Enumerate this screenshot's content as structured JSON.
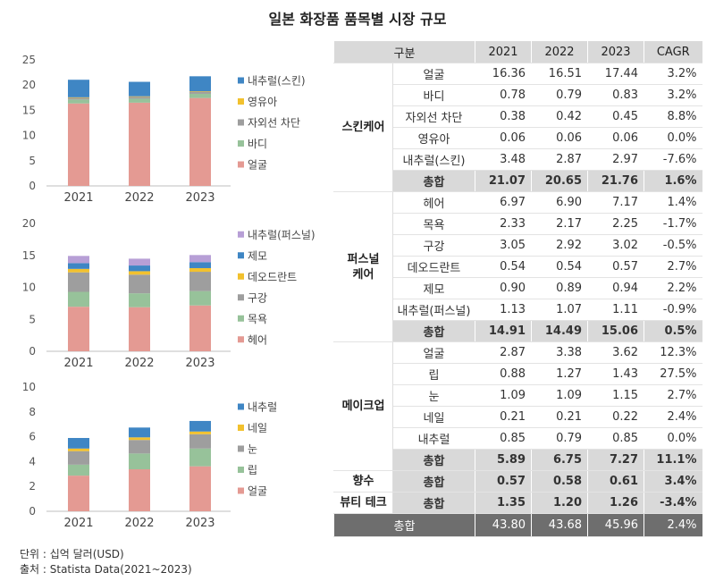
{
  "page_title": "일본 화장품 품목별 시장 규모",
  "chart_data": [
    {
      "type": "bar",
      "stacked": true,
      "categories": [
        "2021",
        "2022",
        "2023"
      ],
      "y_ticks": [
        "25",
        "20",
        "15",
        "10",
        "5",
        "0"
      ],
      "ylim": [
        0,
        25
      ],
      "legend_position": "right",
      "series": [
        {
          "name": "얼굴",
          "values": [
            16.36,
            16.51,
            17.44
          ],
          "color": "#e49a93"
        },
        {
          "name": "바디",
          "values": [
            0.78,
            0.79,
            0.83
          ],
          "color": "#97c29a"
        },
        {
          "name": "자외선 차단",
          "values": [
            0.38,
            0.42,
            0.45
          ],
          "color": "#9e9e9e"
        },
        {
          "name": "영유아",
          "values": [
            0.06,
            0.06,
            0.06
          ],
          "color": "#f2c12e"
        },
        {
          "name": "내추럴(스킨)",
          "values": [
            3.48,
            2.87,
            2.97
          ],
          "color": "#3f86c4"
        }
      ]
    },
    {
      "type": "bar",
      "stacked": true,
      "categories": [
        "2021",
        "2022",
        "2023"
      ],
      "y_ticks": [
        "20",
        "15",
        "10",
        "5",
        "0"
      ],
      "ylim": [
        0,
        20
      ],
      "legend_position": "right",
      "series": [
        {
          "name": "헤어",
          "values": [
            6.97,
            6.9,
            7.17
          ],
          "color": "#e49a93"
        },
        {
          "name": "목욕",
          "values": [
            2.33,
            2.17,
            2.25
          ],
          "color": "#97c29a"
        },
        {
          "name": "구강",
          "values": [
            3.05,
            2.92,
            3.02
          ],
          "color": "#9e9e9e"
        },
        {
          "name": "데오드란트",
          "values": [
            0.54,
            0.54,
            0.57
          ],
          "color": "#f2c12e"
        },
        {
          "name": "제모",
          "values": [
            0.9,
            0.89,
            0.94
          ],
          "color": "#3f86c4"
        },
        {
          "name": "내추럴(퍼스널)",
          "values": [
            1.13,
            1.07,
            1.11
          ],
          "color": "#b79fd6"
        }
      ]
    },
    {
      "type": "bar",
      "stacked": true,
      "categories": [
        "2021",
        "2022",
        "2023"
      ],
      "y_ticks": [
        "10",
        "8",
        "6",
        "4",
        "2",
        "0"
      ],
      "ylim": [
        0,
        10
      ],
      "legend_position": "right",
      "series": [
        {
          "name": "얼굴",
          "values": [
            2.87,
            3.38,
            3.62
          ],
          "color": "#e49a93"
        },
        {
          "name": "립",
          "values": [
            0.88,
            1.27,
            1.43
          ],
          "color": "#97c29a"
        },
        {
          "name": "눈",
          "values": [
            1.09,
            1.09,
            1.15
          ],
          "color": "#9e9e9e"
        },
        {
          "name": "네일",
          "values": [
            0.21,
            0.21,
            0.22
          ],
          "color": "#f2c12e"
        },
        {
          "name": "내추럴",
          "values": [
            0.85,
            0.79,
            0.85
          ],
          "color": "#3f86c4"
        }
      ]
    }
  ],
  "table": {
    "header": [
      "구분",
      "2021",
      "2022",
      "2023",
      "CAGR"
    ],
    "groups": [
      {
        "name": "스킨케어",
        "rows": [
          {
            "label": "얼굴",
            "values": [
              "16.36",
              "16.51",
              "17.44",
              "3.2%"
            ]
          },
          {
            "label": "바디",
            "values": [
              "0.78",
              "0.79",
              "0.83",
              "3.2%"
            ]
          },
          {
            "label": "자외선 차단",
            "values": [
              "0.38",
              "0.42",
              "0.45",
              "8.8%"
            ]
          },
          {
            "label": "영유아",
            "values": [
              "0.06",
              "0.06",
              "0.06",
              "0.0%"
            ]
          },
          {
            "label": "내추럴(스킨)",
            "values": [
              "3.48",
              "2.87",
              "2.97",
              "-7.6%"
            ]
          }
        ],
        "total": {
          "label": "총합",
          "values": [
            "21.07",
            "20.65",
            "21.76",
            "1.6%"
          ]
        }
      },
      {
        "name": "퍼스널 케어",
        "rows": [
          {
            "label": "헤어",
            "values": [
              "6.97",
              "6.90",
              "7.17",
              "1.4%"
            ]
          },
          {
            "label": "목욕",
            "values": [
              "2.33",
              "2.17",
              "2.25",
              "-1.7%"
            ]
          },
          {
            "label": "구강",
            "values": [
              "3.05",
              "2.92",
              "3.02",
              "-0.5%"
            ]
          },
          {
            "label": "데오드란트",
            "values": [
              "0.54",
              "0.54",
              "0.57",
              "2.7%"
            ]
          },
          {
            "label": "제모",
            "values": [
              "0.90",
              "0.89",
              "0.94",
              "2.2%"
            ]
          },
          {
            "label": "내추럴(퍼스널)",
            "values": [
              "1.13",
              "1.07",
              "1.11",
              "-0.9%"
            ]
          }
        ],
        "total": {
          "label": "총합",
          "values": [
            "14.91",
            "14.49",
            "15.06",
            "0.5%"
          ]
        }
      },
      {
        "name": "메이크업",
        "rows": [
          {
            "label": "얼굴",
            "values": [
              "2.87",
              "3.38",
              "3.62",
              "12.3%"
            ]
          },
          {
            "label": "립",
            "values": [
              "0.88",
              "1.27",
              "1.43",
              "27.5%"
            ]
          },
          {
            "label": "눈",
            "values": [
              "1.09",
              "1.09",
              "1.15",
              "2.7%"
            ]
          },
          {
            "label": "네일",
            "values": [
              "0.21",
              "0.21",
              "0.22",
              "2.4%"
            ]
          },
          {
            "label": "내추럴",
            "values": [
              "0.85",
              "0.79",
              "0.85",
              "0.0%"
            ]
          }
        ],
        "total": {
          "label": "총합",
          "values": [
            "5.89",
            "6.75",
            "7.27",
            "11.1%"
          ]
        }
      },
      {
        "name": "향수",
        "rows": [],
        "total": {
          "label": "총합",
          "values": [
            "0.57",
            "0.58",
            "0.61",
            "3.4%"
          ]
        }
      },
      {
        "name": "뷰티 테크",
        "rows": [],
        "total": {
          "label": "총합",
          "values": [
            "1.35",
            "1.20",
            "1.26",
            "-3.4%"
          ]
        }
      }
    ],
    "grand_total": {
      "label": "총합",
      "values": [
        "43.80",
        "43.68",
        "45.96",
        "2.4%"
      ]
    }
  },
  "footer": {
    "unit": "단위 : 십억 달러(USD)",
    "source": "출처 : Statista Data(2021~2023)"
  }
}
